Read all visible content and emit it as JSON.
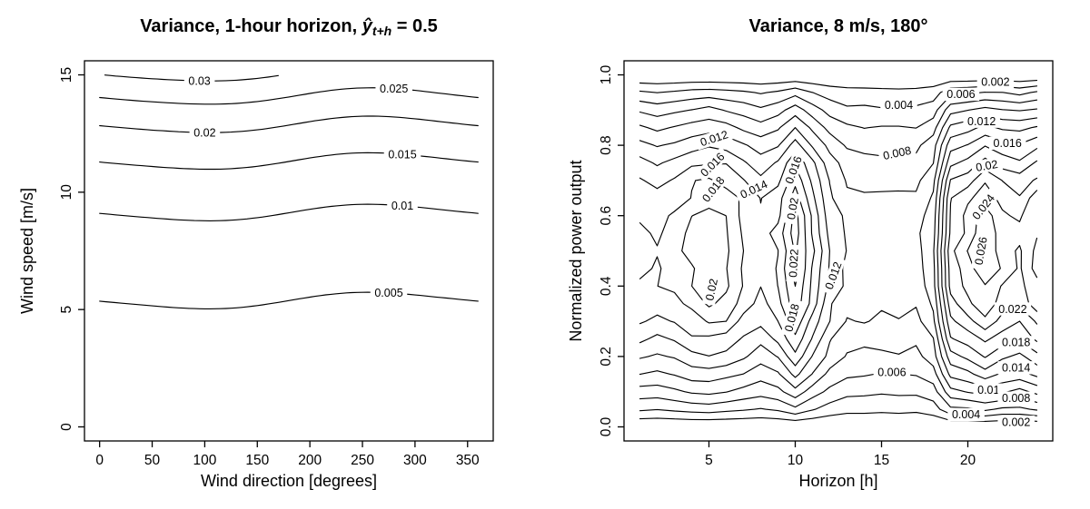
{
  "page": {
    "background": "#ffffff",
    "line_color": "#000000",
    "text_color": "#000000"
  },
  "chart_data": [
    {
      "type": "contour",
      "title_parts": {
        "prefix": "Variance, 1-hour horizon, ",
        "math_var": "ŷ",
        "math_sub": "t+h",
        "suffix": " = 0.5"
      },
      "xlabel": "Wind direction [degrees]",
      "ylabel": "Wind speed [m/s]",
      "xlim": [
        -14.4,
        374.4
      ],
      "ylim": [
        -0.6,
        15.6
      ],
      "data_range": {
        "x": [
          0,
          360
        ],
        "y": [
          0,
          15
        ]
      },
      "xticks": {
        "values": [
          0,
          50,
          100,
          150,
          200,
          250,
          300,
          350
        ],
        "labels": [
          "0",
          "50",
          "100",
          "150",
          "200",
          "250",
          "300",
          "350"
        ]
      },
      "yticks": {
        "values": [
          0,
          5,
          10,
          15
        ],
        "labels": [
          "0",
          "5",
          "10",
          "15"
        ]
      },
      "levels": [
        0.005,
        0.01,
        0.015,
        0.02,
        0.025,
        0.03
      ],
      "field": {
        "kind": "exp_ridge",
        "v0": 0.00185,
        "k": 0.185,
        "dip_amp": 0.34,
        "dip_center_deg": 88,
        "wobble_amp": 0.05,
        "step_deg": 5
      },
      "labels": [
        {
          "text": "0.03",
          "level": 0.03,
          "x": 95
        },
        {
          "text": "0.025",
          "level": 0.025,
          "x": 280
        },
        {
          "text": "0.02",
          "level": 0.02,
          "x": 100
        },
        {
          "text": "0.015",
          "level": 0.015,
          "x": 288
        },
        {
          "text": "0.01",
          "level": 0.01,
          "x": 288
        },
        {
          "text": "0.005",
          "level": 0.005,
          "x": 275
        }
      ]
    },
    {
      "type": "contour",
      "title": "Variance, 8 m/s, 180°",
      "xlabel": "Horizon [h]",
      "ylabel": "Normalized power output",
      "xlim": [
        0.08,
        24.92
      ],
      "ylim": [
        -0.04,
        1.04
      ],
      "data_range": {
        "x": [
          1,
          24
        ],
        "y": [
          0,
          1
        ]
      },
      "xticks": {
        "values": [
          5,
          10,
          15,
          20
        ],
        "labels": [
          "5",
          "10",
          "15",
          "20"
        ]
      },
      "yticks": {
        "values": [
          0,
          0.2,
          0.4,
          0.6,
          0.8,
          1.0
        ],
        "labels": [
          "0.0",
          "0.2",
          "0.4",
          "0.6",
          "0.8",
          "1.0"
        ]
      },
      "levels": [
        0.002,
        0.004,
        0.006,
        0.008,
        0.01,
        0.012,
        0.014,
        0.016,
        0.018,
        0.02,
        0.022,
        0.024,
        0.026
      ],
      "field": {
        "kind": "grid_product",
        "h_start": 1,
        "h_step": 1,
        "amplitude_by_horizon": [
          0.019,
          0.0182,
          0.019,
          0.0205,
          0.0215,
          0.0205,
          0.0185,
          0.017,
          0.0185,
          0.0232,
          0.0185,
          0.0138,
          0.0118,
          0.0115,
          0.0112,
          0.0115,
          0.0113,
          0.0135,
          0.0235,
          0.0252,
          0.0275,
          0.0255,
          0.0245,
          0.027
        ],
        "p_step": 0.05,
        "s_exponent": 0.8,
        "rel_noise": 0.07,
        "abs_noise": 0.0005,
        "hash": [
          127.1,
          311.7,
          43758.5453
        ],
        "hash2": [
          269.5,
          183.3,
          28001.8384
        ]
      },
      "labels": [
        {
          "text": "0.002",
          "x": 21.6,
          "y": 0.98,
          "rot": 0
        },
        {
          "text": "0.006",
          "x": 19.6,
          "y": 0.945,
          "rot": 0
        },
        {
          "text": "0.004",
          "x": 16.0,
          "y": 0.915,
          "rot": 0
        },
        {
          "text": "0.012",
          "x": 20.8,
          "y": 0.868,
          "rot": 0
        },
        {
          "text": "0.016",
          "x": 22.3,
          "y": 0.806,
          "rot": 0
        },
        {
          "text": "0.008",
          "x": 15.9,
          "y": 0.778,
          "rot": -12
        },
        {
          "text": "0.02",
          "x": 21.1,
          "y": 0.742,
          "rot": -10
        },
        {
          "text": "0.024",
          "x": 20.9,
          "y": 0.625,
          "rot": -52
        },
        {
          "text": "0.026",
          "x": 20.75,
          "y": 0.5,
          "rot": -80
        },
        {
          "text": "0.012",
          "x": 5.3,
          "y": 0.82,
          "rot": -18
        },
        {
          "text": "0.016",
          "x": 5.2,
          "y": 0.745,
          "rot": -45
        },
        {
          "text": "0.014",
          "x": 7.6,
          "y": 0.675,
          "rot": -25
        },
        {
          "text": "0.018",
          "x": 5.25,
          "y": 0.675,
          "rot": -52
        },
        {
          "text": "0.02",
          "x": 5.15,
          "y": 0.39,
          "rot": -78
        },
        {
          "text": "0.016",
          "x": 9.9,
          "y": 0.73,
          "rot": -70
        },
        {
          "text": "0.02",
          "x": 9.85,
          "y": 0.62,
          "rot": -80
        },
        {
          "text": "0.022",
          "x": 9.9,
          "y": 0.465,
          "rot": -87
        },
        {
          "text": "0.018",
          "x": 9.8,
          "y": 0.31,
          "rot": -75
        },
        {
          "text": "0.012",
          "x": 12.2,
          "y": 0.43,
          "rot": -70
        },
        {
          "text": "0.022",
          "x": 22.6,
          "y": 0.335,
          "rot": 0
        },
        {
          "text": "0.018",
          "x": 22.8,
          "y": 0.24,
          "rot": 0
        },
        {
          "text": "0.014",
          "x": 22.8,
          "y": 0.168,
          "rot": 0
        },
        {
          "text": "0.01",
          "x": 21.2,
          "y": 0.105,
          "rot": 0
        },
        {
          "text": "0.008",
          "x": 22.8,
          "y": 0.082,
          "rot": 0
        },
        {
          "text": "0.006",
          "x": 15.6,
          "y": 0.155,
          "rot": 0
        },
        {
          "text": "0.004",
          "x": 19.9,
          "y": 0.035,
          "rot": 0
        },
        {
          "text": "0.002",
          "x": 22.8,
          "y": 0.014,
          "rot": 0
        }
      ]
    }
  ]
}
